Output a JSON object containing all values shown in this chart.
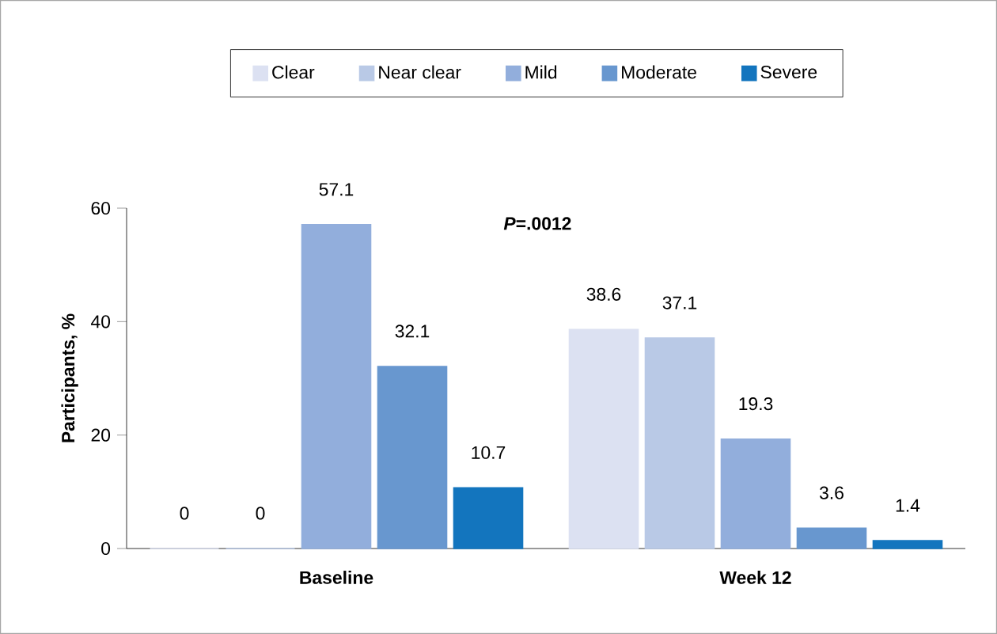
{
  "chart_data": {
    "type": "bar",
    "ylabel": "Participants, %",
    "categories": [
      "Baseline",
      "Week 12"
    ],
    "series": [
      {
        "name": "Clear",
        "color": "#dce1f2",
        "values": [
          0,
          38.6
        ]
      },
      {
        "name": "Near clear",
        "color": "#b9c9e6",
        "values": [
          0,
          37.1
        ]
      },
      {
        "name": "Mild",
        "color": "#92aedc",
        "values": [
          57.1,
          19.3
        ]
      },
      {
        "name": "Moderate",
        "color": "#6897cf",
        "values": [
          32.1,
          3.6
        ]
      },
      {
        "name": "Severe",
        "color": "#1375be",
        "values": [
          10.7,
          1.4
        ]
      }
    ],
    "ylim": [
      0,
      60
    ],
    "yticks": [
      0,
      20,
      40,
      60
    ],
    "data_labels": true,
    "legend": "top",
    "grid": false,
    "annotations": [
      "*P*=.0012"
    ]
  }
}
